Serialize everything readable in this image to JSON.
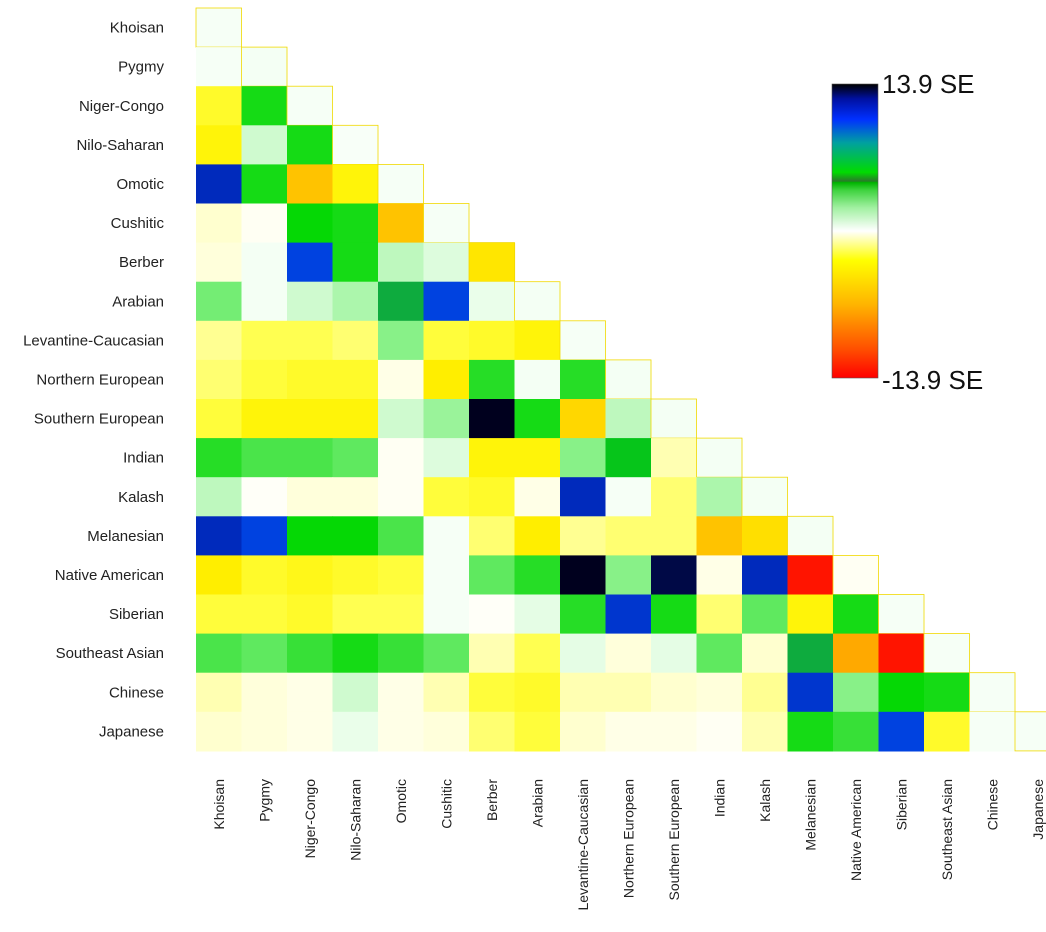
{
  "chart_data": {
    "type": "heatmap",
    "layout": "lower-triangle",
    "labels": [
      "Khoisan",
      "Pygmy",
      "Niger-Congo",
      "Nilo-Saharan",
      "Omotic",
      "Cushitic",
      "Berber",
      "Arabian",
      "Levantine-Caucasian",
      "Northern European",
      "Southern European",
      "Indian",
      "Kalash",
      "Melanesian",
      "Native American",
      "Siberian",
      "Southeast Asian",
      "Chinese",
      "Japanese"
    ],
    "value_range": [
      -13.9,
      13.9
    ],
    "unit": "SE",
    "legend": {
      "max_label": "13.9 SE",
      "min_label": "-13.9 SE",
      "placement": "right"
    },
    "values": [
      [
        0.5
      ],
      [
        0.5,
        0.6
      ],
      [
        -5,
        7,
        0.5
      ],
      [
        -6,
        2,
        7,
        0.4
      ],
      [
        12,
        7,
        -9,
        -6,
        0.5
      ],
      [
        -2,
        -0.5,
        7.5,
        7,
        -9,
        0.5
      ],
      [
        -1.5,
        0.6,
        11,
        7,
        2.5,
        1.5,
        -7
      ],
      [
        4.5,
        0.6,
        2,
        3,
        8.5,
        11,
        1,
        0.6
      ],
      [
        -3,
        -4,
        -4,
        -3.5,
        4,
        -4.5,
        -5,
        -6,
        0.5
      ],
      [
        -3.5,
        -4.5,
        -5,
        -5,
        -1,
        -6.5,
        6.5,
        0.6,
        6.5,
        0.6
      ],
      [
        -4.5,
        -6,
        -6,
        -6,
        2,
        3.5,
        13.9,
        7,
        -8,
        2.5,
        0.6
      ],
      [
        6.5,
        5.5,
        5.5,
        5,
        -0.5,
        1.5,
        -6,
        -6,
        4,
        8,
        -2.5,
        0.6
      ],
      [
        2.5,
        -0.3,
        -1.5,
        -1.5,
        -0.5,
        -4.5,
        -5,
        -1,
        12,
        0.5,
        -3.5,
        3,
        0.6
      ],
      [
        12,
        11,
        7.5,
        7.5,
        5.5,
        0.5,
        -3.5,
        -6.5,
        -3,
        -3.5,
        -3.5,
        -9,
        -7.5,
        0.6
      ],
      [
        -6.5,
        -5,
        -5.5,
        -5,
        -4.5,
        0.5,
        5,
        6.5,
        13.9,
        4,
        13.5,
        -1,
        12,
        -13.5,
        -0.5
      ],
      [
        -4.5,
        -4.5,
        -5,
        -4,
        -4,
        0.5,
        -0.3,
        1.2,
        6.5,
        11.5,
        7,
        -3.5,
        5,
        -6,
        7,
        0.5
      ],
      [
        5.5,
        5,
        6,
        7,
        6,
        5,
        -2.5,
        -4,
        1.2,
        -1.5,
        1.2,
        5,
        -2,
        8.5,
        -10,
        -13.5,
        0.5
      ],
      [
        -2.5,
        -1.5,
        -1,
        2,
        -1,
        -2.5,
        -4.5,
        -5,
        -2.5,
        -2.5,
        -2,
        -1.5,
        -3,
        11.5,
        4,
        7.5,
        7,
        0.5
      ],
      [
        -2,
        -1.5,
        -1,
        1,
        -1,
        -1.5,
        -3.5,
        -4.5,
        -2,
        -1,
        -1,
        -0.5,
        -2.5,
        7,
        6,
        11,
        -5,
        0.5,
        0.5
      ]
    ]
  }
}
